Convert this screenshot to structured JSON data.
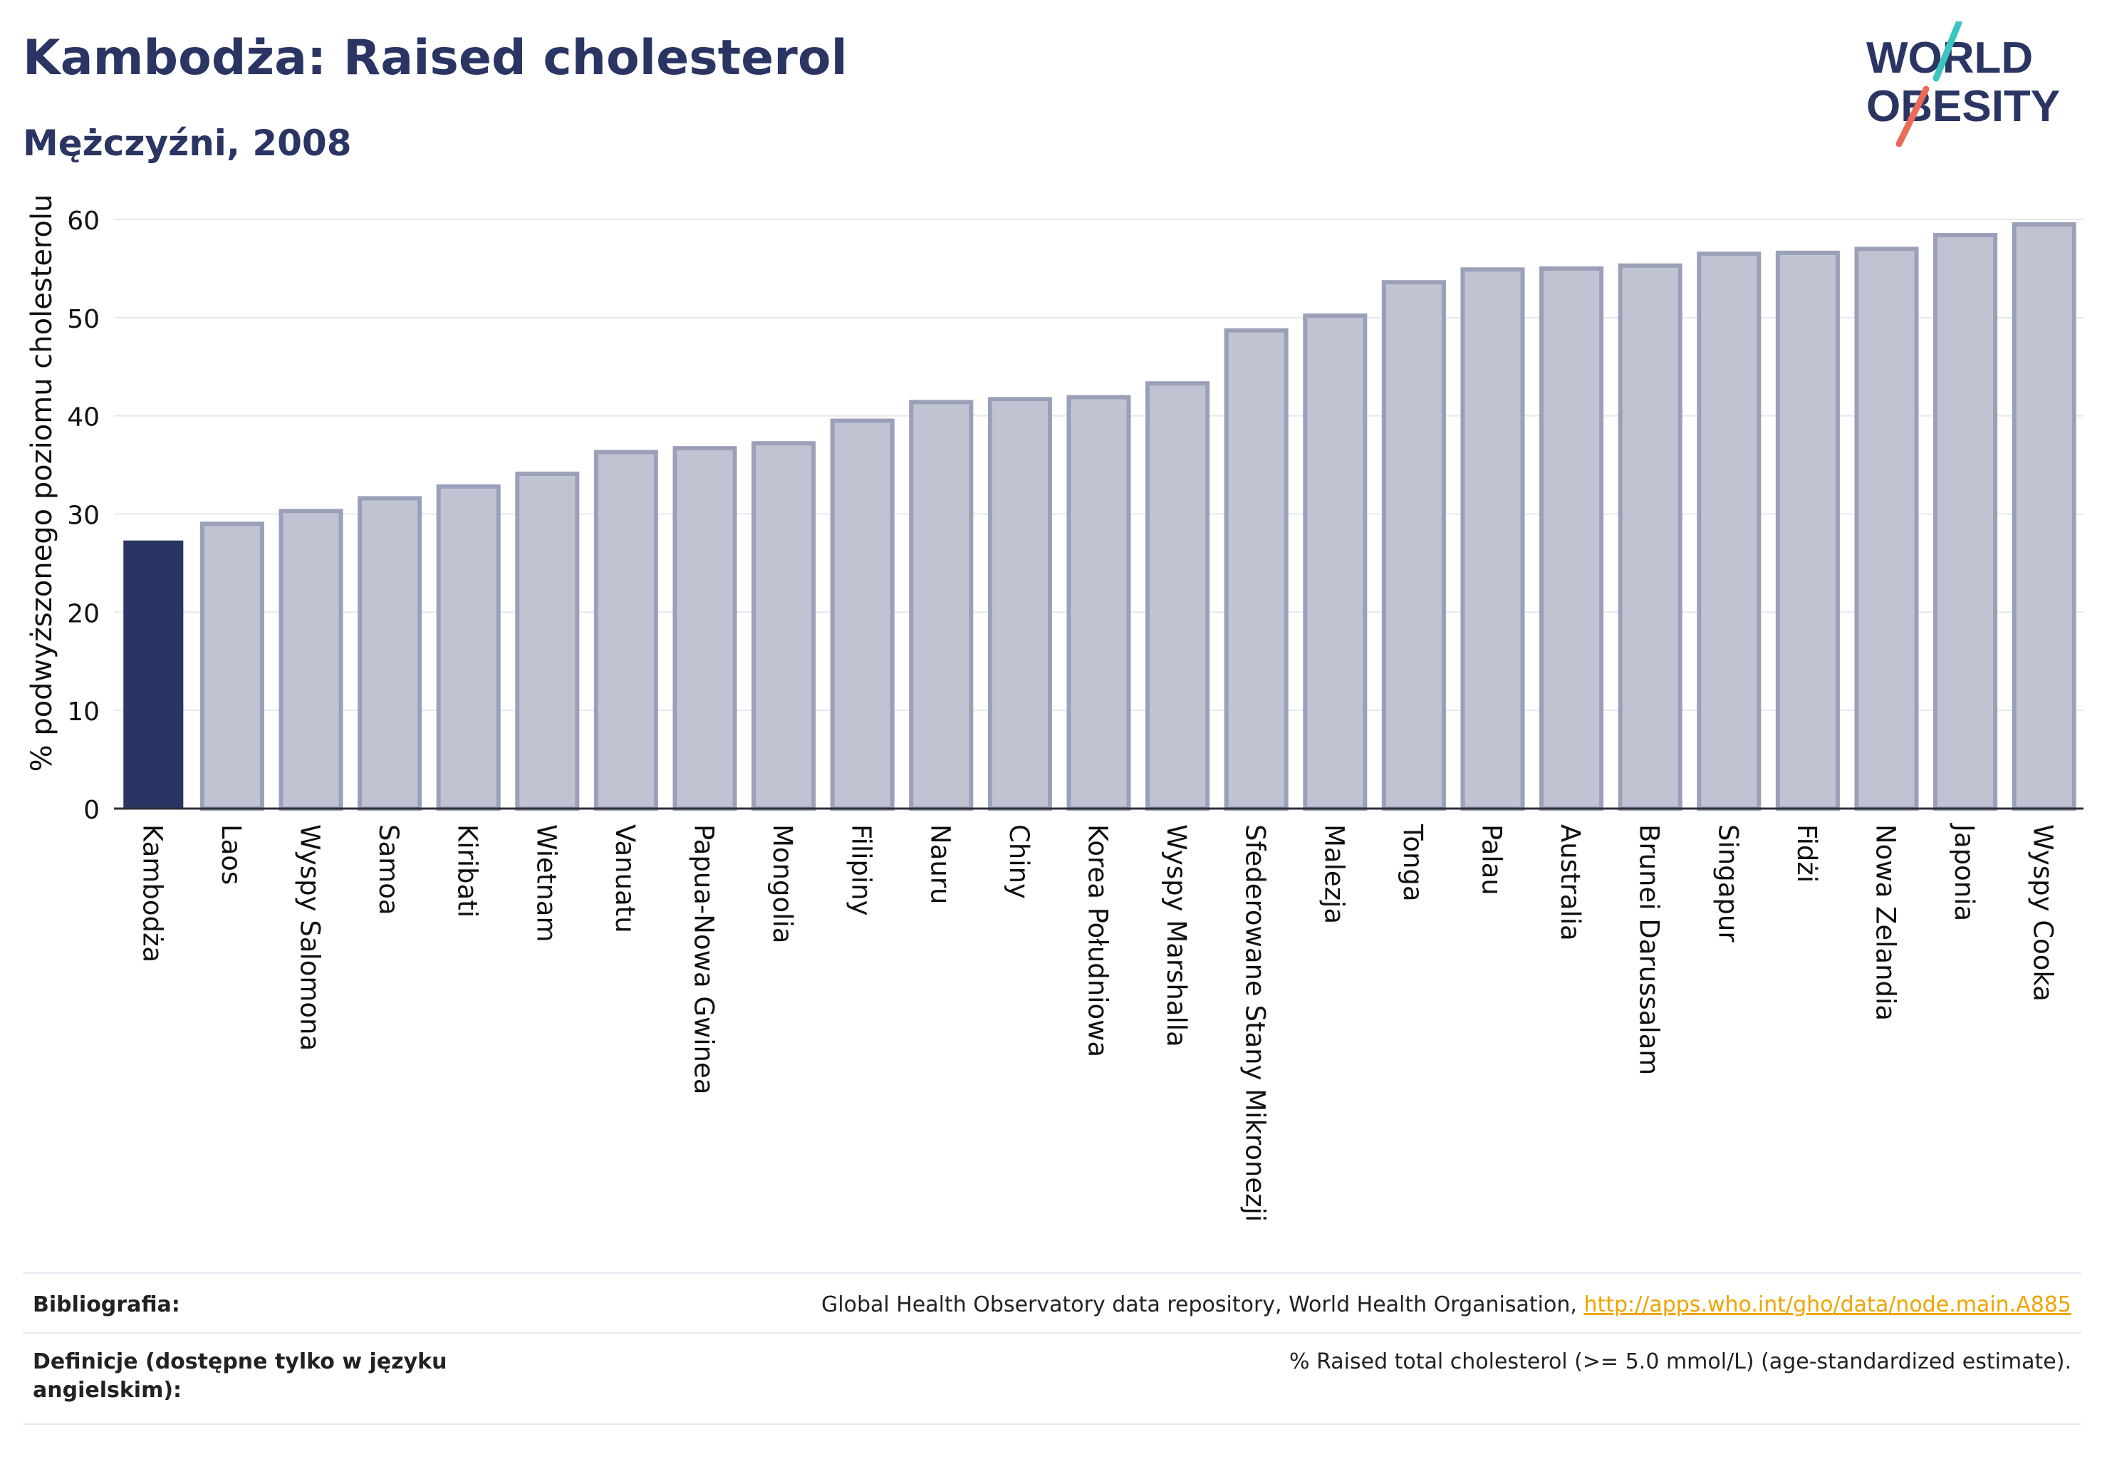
{
  "header": {
    "title": "Kambodża: Raised cholesterol",
    "subtitle": "Mężczyźni, 2008",
    "logo_text_line1": "WORLD",
    "logo_text_line2": "OBESITY"
  },
  "colors": {
    "primary": "#2b3563",
    "bar_muted": "#c0c4d2",
    "bar_muted_border": "#9aa0b8",
    "link": "#f0a400",
    "logo_teal": "#3cc5c0",
    "logo_coral": "#ea6b5a"
  },
  "chart_data": {
    "type": "bar",
    "title": "Kambodża: Raised cholesterol",
    "subtitle": "Mężczyźni, 2008",
    "xlabel": "",
    "ylabel": "% podwyższonego poziomu cholesterolu",
    "ylim": [
      0,
      60
    ],
    "yticks": [
      0,
      10,
      20,
      30,
      40,
      50,
      60
    ],
    "grid": true,
    "highlight": "Kambodża",
    "categories": [
      "Kambodża",
      "Laos",
      "Wyspy Salomona",
      "Samoa",
      "Kiribati",
      "Wietnam",
      "Vanuatu",
      "Papua-Nowa Gwinea",
      "Mongolia",
      "Filipiny",
      "Nauru",
      "Chiny",
      "Korea Południowa",
      "Wyspy Marshalla",
      "Sfederowane Stany Mikronezji",
      "Malezja",
      "Tonga",
      "Palau",
      "Australia",
      "Brunei Darussalam",
      "Singapur",
      "Fidżi",
      "Nowa Zelandia",
      "Japonia",
      "Wyspy Cooka"
    ],
    "values": [
      27.3,
      29.0,
      30.3,
      31.6,
      32.8,
      34.1,
      36.3,
      36.7,
      37.2,
      39.5,
      41.4,
      41.7,
      41.9,
      43.3,
      48.7,
      50.2,
      53.6,
      54.9,
      55.0,
      55.3,
      56.5,
      56.6,
      57.0,
      58.4,
      59.5
    ]
  },
  "footer": {
    "bibliography_label": "Bibliografia:",
    "bibliography_text": "Global Health Observatory data repository, World Health Organisation, ",
    "bibliography_link": "http://apps.who.int/gho/data/node.main.A885",
    "definitions_label_line1": "Definicje (dostępne tylko w języku",
    "definitions_label_line2": "angielskim):",
    "definitions_text": "% Raised total cholesterol (>= 5.0 mmol/L) (age-standardized estimate)."
  }
}
